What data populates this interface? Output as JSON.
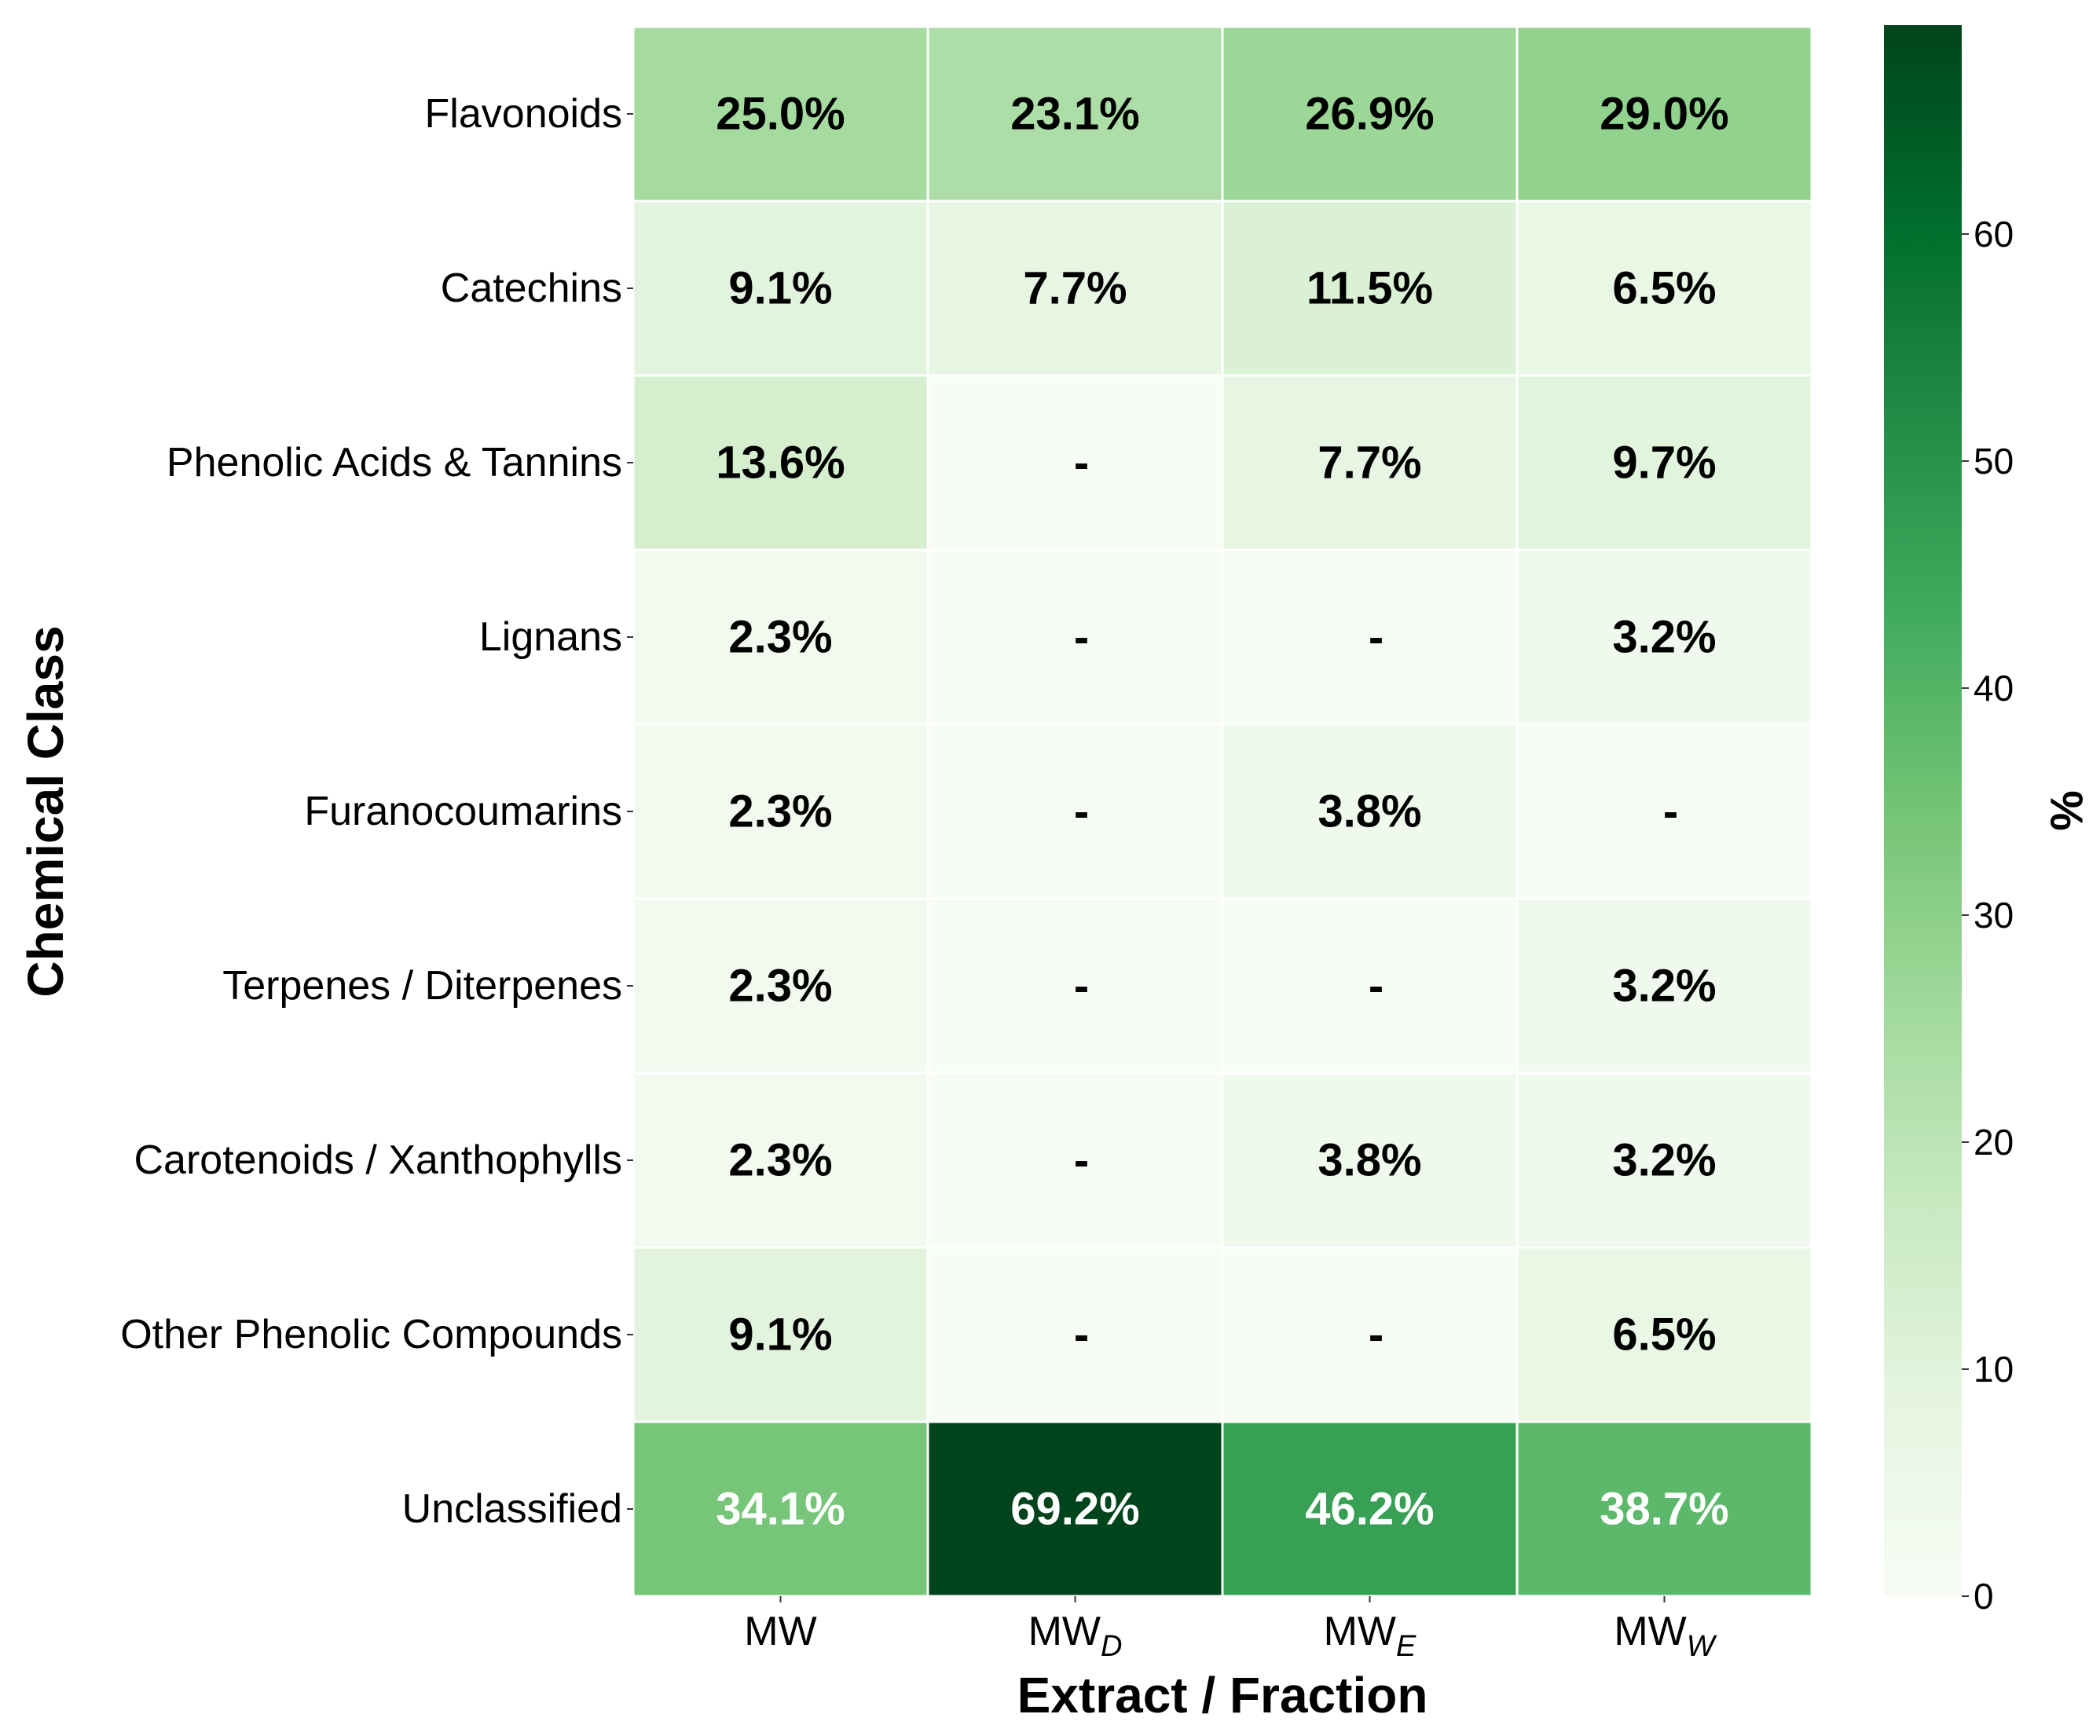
{
  "chart_data": {
    "type": "heatmap",
    "title": "",
    "xlabel": "Extract / Fraction",
    "ylabel": "Chemical Class",
    "x_categories": [
      {
        "base": "MW",
        "sub": ""
      },
      {
        "base": "MW",
        "sub": "D"
      },
      {
        "base": "MW",
        "sub": "E"
      },
      {
        "base": "MW",
        "sub": "W"
      }
    ],
    "y_categories": [
      "Flavonoids",
      "Catechins",
      "Phenolic Acids & Tannins",
      "Lignans",
      "Furanocoumarins",
      "Terpenes / Diterpenes",
      "Carotenoids / Xanthophylls",
      "Other Phenolic Compounds",
      "Unclassified"
    ],
    "values": [
      [
        25.0,
        23.1,
        26.9,
        29.0
      ],
      [
        9.1,
        7.7,
        11.5,
        6.5
      ],
      [
        13.6,
        0,
        7.7,
        9.7
      ],
      [
        2.3,
        0,
        0,
        3.2
      ],
      [
        2.3,
        0,
        3.8,
        0
      ],
      [
        2.3,
        0,
        0,
        3.2
      ],
      [
        2.3,
        0,
        3.8,
        3.2
      ],
      [
        9.1,
        0,
        0,
        6.5
      ],
      [
        34.1,
        69.2,
        46.2,
        38.7
      ]
    ],
    "cell_labels": [
      [
        "25.0%",
        "23.1%",
        "26.9%",
        "29.0%"
      ],
      [
        "9.1%",
        "7.7%",
        "11.5%",
        "6.5%"
      ],
      [
        "13.6%",
        "-",
        "7.7%",
        "9.7%"
      ],
      [
        "2.3%",
        "-",
        "-",
        "3.2%"
      ],
      [
        "2.3%",
        "-",
        "3.8%",
        "-"
      ],
      [
        "2.3%",
        "-",
        "-",
        "3.2%"
      ],
      [
        "2.3%",
        "-",
        "3.8%",
        "3.2%"
      ],
      [
        "9.1%",
        "-",
        "-",
        "6.5%"
      ],
      [
        "34.1%",
        "69.2%",
        "46.2%",
        "38.7%"
      ]
    ],
    "colorbar": {
      "label": "%",
      "range": [
        0,
        69.2
      ],
      "ticks": [
        0,
        10,
        20,
        30,
        40,
        50,
        60
      ],
      "colormap": "Greens",
      "color_low": "#f7fcf5",
      "color_high": "#00441b"
    },
    "grid": false,
    "cell_separator_color": "#ffffff",
    "label_color_dark": "#000000",
    "label_color_light": "#ffffff"
  }
}
